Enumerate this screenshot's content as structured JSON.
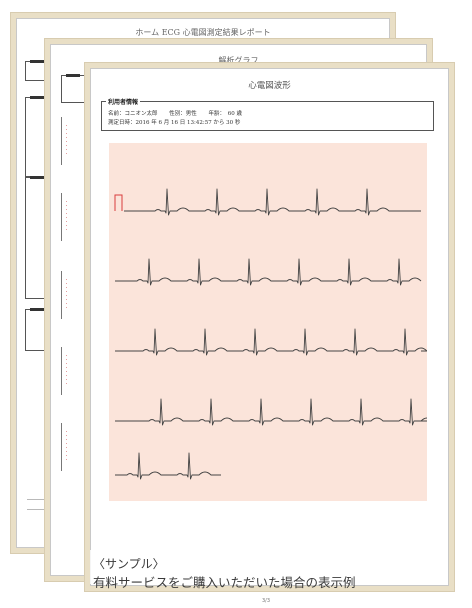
{
  "sheets": {
    "back_title": "ホーム ECG 心電図測定結果レポート",
    "mid_title": "解析グラフ",
    "front_title": "心電図波形"
  },
  "user_info": {
    "section_label": "利用者情報",
    "name": "名前：コニオン太郎",
    "gender": "性別：男性",
    "age": "年齢：　60 歳",
    "measured": "測定日時：2016 年 6 月 16 日 13:42:57 から 30 秒"
  },
  "caption": {
    "line1": "〈サンプル〉",
    "line2": "有料サービスをご購入いただいた場合の表示例"
  },
  "page_number": "3/3",
  "colors": {
    "grid_bg": "#fbe4da",
    "trace": "#444444",
    "calibration": "#d93c3c",
    "frame": "#e9dfc6"
  }
}
